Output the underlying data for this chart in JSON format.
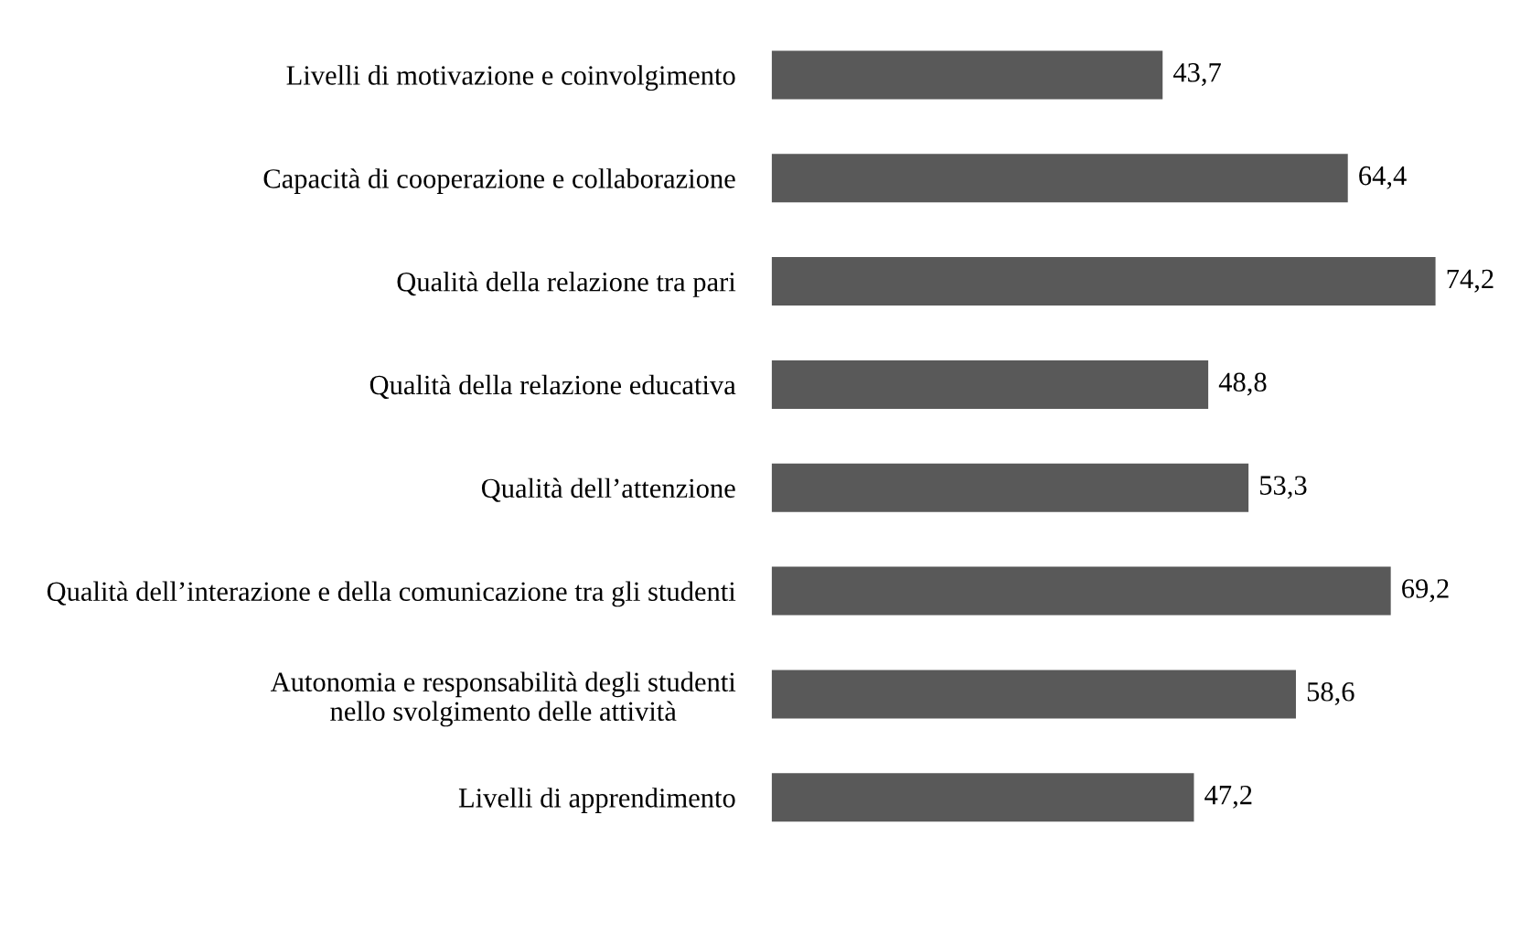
{
  "chart_data": {
    "type": "bar",
    "orientation": "horizontal",
    "categories": [
      "Livelli di motivazione e coinvolgimento",
      "Capacità di cooperazione e collaborazione",
      "Qualità della relazione tra pari",
      "Qualità della relazione educativa",
      "Qualità dell’attenzione",
      "Qualità dell’interazione e della comunicazione tra gli studenti",
      "Autonomia e responsabilità degli studenti\nnello svolgimento delle attività",
      "Livelli di apprendimento"
    ],
    "values": [
      43.7,
      64.4,
      74.2,
      48.8,
      53.3,
      69.2,
      58.6,
      47.2
    ],
    "value_labels": [
      "43,7",
      "64,4",
      "74,2",
      "48,8",
      "53,3",
      "69,2",
      "58,6",
      "47,2"
    ],
    "color": "#595959",
    "grid": false,
    "legend": false
  }
}
